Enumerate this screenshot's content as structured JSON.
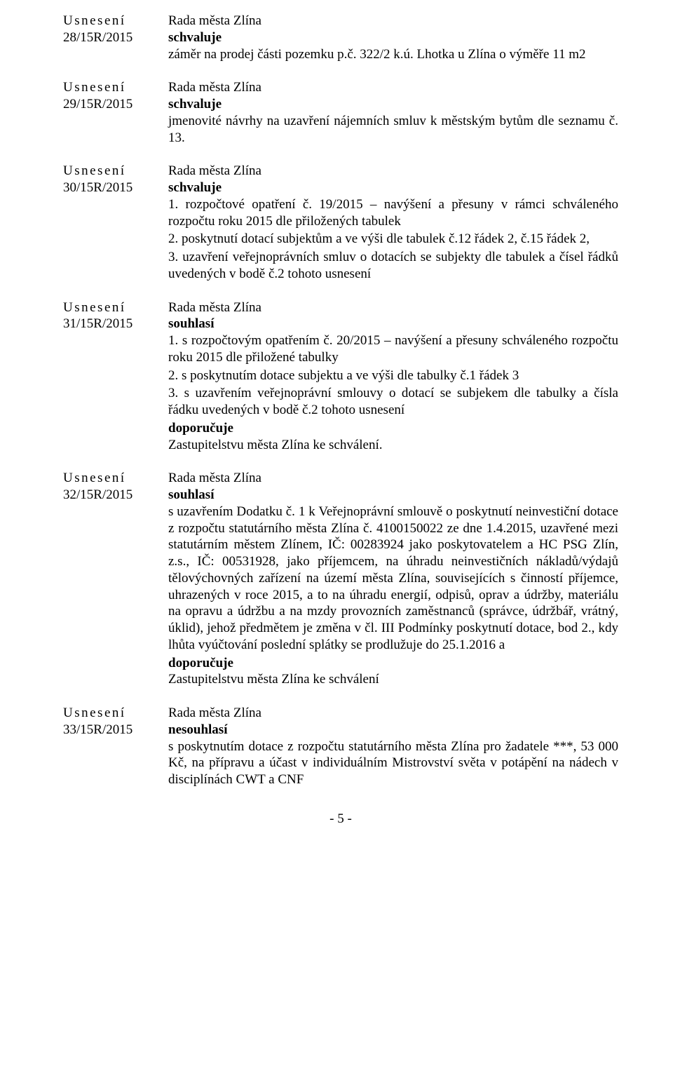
{
  "common": {
    "usneseni": "Usnesení",
    "rada": "Rada města Zlína",
    "schvaluje": "schvaluje",
    "souhlasi": "souhlasí",
    "nesouhlasi": "nesouhlasí",
    "doporucuje": "doporučuje"
  },
  "r28": {
    "num": "28/15R/2015",
    "body": "záměr na prodej části pozemku p.č. 322/2 k.ú. Lhotka u Zlína o výměře 11 m2"
  },
  "r29": {
    "num": "29/15R/2015",
    "body": "jmenovité návrhy na uzavření nájemních smluv k městským bytům dle seznamu č. 13."
  },
  "r30": {
    "num": "30/15R/2015",
    "p1": "1. rozpočtové opatření č. 19/2015 – navýšení a přesuny v rámci schváleného rozpočtu roku 2015 dle přiložených tabulek",
    "p2": "2. poskytnutí dotací subjektům a ve výši dle tabulek č.12 řádek 2, č.15 řádek 2,",
    "p3": "3. uzavření veřejnoprávních smluv o dotacích se subjekty dle tabulek a čísel řádků uvedených v bodě č.2 tohoto usnesení"
  },
  "r31": {
    "num": "31/15R/2015",
    "p1": "1. s rozpočtovým opatřením č. 20/2015 – navýšení a přesuny schváleného rozpočtu roku 2015 dle přiložené tabulky",
    "p2": "2. s poskytnutím dotace subjektu a ve výši dle tabulky č.1 řádek 3",
    "p3": "3. s uzavřením veřejnoprávní smlouvy o dotací se subjekem dle tabulky a čísla řádku uvedených v bodě č.2 tohoto usnesení",
    "p4": "Zastupitelstvu města Zlína ke schválení."
  },
  "r32": {
    "num": "32/15R/2015",
    "p1": "s uzavřením Dodatku č. 1 k Veřejnoprávní smlouvě o poskytnutí neinvestiční dotace z rozpočtu statutárního města Zlína č. 4100150022 ze dne 1.4.2015, uzavřené mezi statutárním městem Zlínem, IČ: 00283924 jako poskytovatelem a HC PSG Zlín, z.s., IČ: 00531928, jako příjemcem, na úhradu neinvestičních nákladů/výdajů tělovýchovných zařízení na území města Zlína, souvisejících s činností příjemce, uhrazených v roce 2015, a to na úhradu energií, odpisů, oprav a údržby, materiálu na opravu a údržbu a na mzdy provozních zaměstnanců (správce, údržbář, vrátný, úklid), jehož předmětem je změna v čl. III Podmínky poskytnutí dotace, bod 2., kdy lhůta vyúčtování poslední splátky se prodlužuje do 25.1.2016 a",
    "p2": "Zastupitelstvu města Zlína ke schválení"
  },
  "r33": {
    "num": "33/15R/2015",
    "p1": "s poskytnutím dotace z rozpočtu statutárního města Zlína pro žadatele ***, 53 000 Kč, na přípravu a účast v individuálním Mistrovství světa v potápění na nádech v disciplínách CWT a CNF"
  },
  "page": "- 5 -"
}
